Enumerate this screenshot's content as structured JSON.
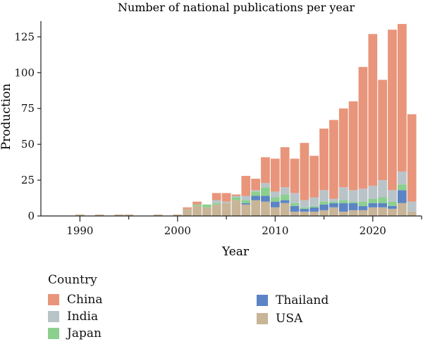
{
  "chart_data": {
    "type": "bar",
    "stacked": true,
    "title": "Number of national publications per year",
    "xlabel": "Year",
    "ylabel": "Production",
    "xlim": [
      1986,
      2025
    ],
    "ylim": [
      0,
      136
    ],
    "x_ticks": [
      "1990",
      "2000",
      "2010",
      "2020"
    ],
    "y_ticks": [
      "0",
      "25",
      "50",
      "75",
      "100",
      "125"
    ],
    "grid": false,
    "legend_title": "Country",
    "legend_position": "bottom",
    "x": [
      1990,
      1991,
      1992,
      1993,
      1994,
      1995,
      1996,
      1997,
      1998,
      1999,
      2000,
      2001,
      2002,
      2003,
      2004,
      2005,
      2006,
      2007,
      2008,
      2009,
      2010,
      2011,
      2012,
      2013,
      2014,
      2015,
      2016,
      2017,
      2018,
      2019,
      2020,
      2021,
      2022,
      2023,
      2024
    ],
    "series": [
      {
        "name": "USA",
        "color": "#c8b496",
        "values": [
          1,
          0,
          1,
          0,
          1,
          1,
          0,
          0,
          1,
          0,
          1,
          5,
          7,
          6,
          8,
          9,
          11,
          8,
          11,
          10,
          6,
          9,
          3,
          3,
          3,
          4,
          6,
          3,
          4,
          4,
          6,
          6,
          5,
          9,
          3
        ]
      },
      {
        "name": "Thailand",
        "color": "#5b84c4",
        "values": [
          0,
          0,
          0,
          0,
          0,
          0,
          0,
          0,
          0,
          0,
          0,
          0,
          0,
          0,
          0,
          0,
          0,
          1,
          3,
          4,
          4,
          2,
          4,
          2,
          3,
          4,
          3,
          6,
          5,
          3,
          3,
          3,
          2,
          9,
          0
        ]
      },
      {
        "name": "Japan",
        "color": "#8ccf8e",
        "values": [
          0,
          0,
          0,
          0,
          0,
          0,
          0,
          0,
          0,
          0,
          0,
          0,
          1,
          2,
          1,
          0,
          2,
          2,
          3,
          6,
          3,
          4,
          2,
          1,
          1,
          2,
          1,
          2,
          1,
          3,
          3,
          4,
          3,
          4,
          0
        ]
      },
      {
        "name": "India",
        "color": "#b9c4c9",
        "values": [
          0,
          0,
          0,
          0,
          0,
          0,
          0,
          0,
          0,
          0,
          0,
          0,
          0,
          0,
          2,
          1,
          1,
          3,
          1,
          3,
          4,
          5,
          7,
          5,
          6,
          8,
          2,
          9,
          8,
          9,
          9,
          12,
          8,
          9,
          7
        ]
      },
      {
        "name": "China",
        "color": "#e8957b",
        "values": [
          0,
          0,
          0,
          0,
          0,
          0,
          0,
          0,
          0,
          0,
          0,
          1,
          2,
          0,
          5,
          6,
          1,
          14,
          8,
          18,
          23,
          28,
          24,
          40,
          29,
          43,
          55,
          55,
          62,
          85,
          106,
          70,
          112,
          103,
          61
        ]
      }
    ]
  },
  "legend": {
    "title": "Country",
    "items": [
      {
        "label": "China",
        "color": "#e8957b"
      },
      {
        "label": "India",
        "color": "#b9c4c9"
      },
      {
        "label": "Japan",
        "color": "#8ccf8e"
      },
      {
        "label": "Thailand",
        "color": "#5b84c4"
      },
      {
        "label": "USA",
        "color": "#c8b496"
      }
    ]
  }
}
